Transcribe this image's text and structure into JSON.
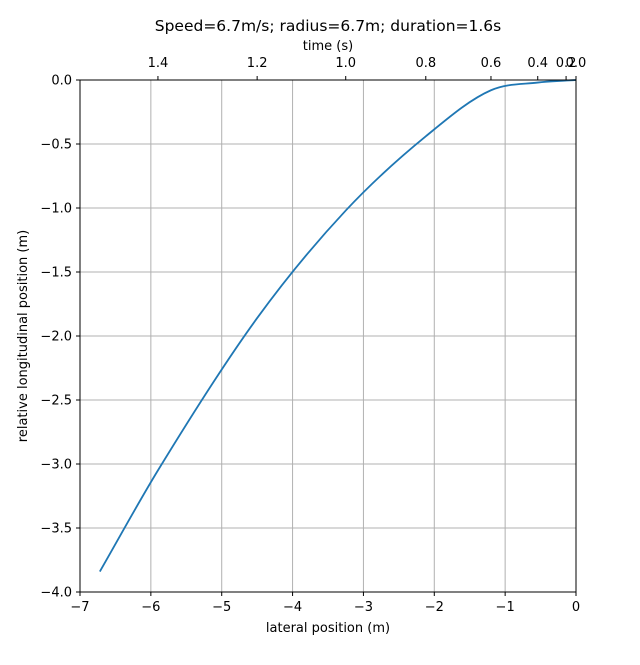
{
  "chart_data": {
    "type": "line",
    "title": "Speed=6.7m/s; radius=6.7m; duration=1.6s",
    "xlabel": "lateral position (m)",
    "ylabel": "relative longitudinal position (m)",
    "top_xlabel": "time (s)",
    "xlim": [
      -7,
      0
    ],
    "ylim": [
      -4,
      0
    ],
    "grid": true,
    "x_ticks": [
      -7,
      -6,
      -5,
      -4,
      -3,
      -2,
      -1,
      0
    ],
    "x_tick_labels": [
      "−7",
      "−6",
      "−5",
      "−4",
      "−3",
      "−2",
      "−1",
      "0"
    ],
    "y_ticks": [
      0,
      -0.5,
      -1,
      -1.5,
      -2,
      -2.5,
      -3,
      -3.5,
      -4
    ],
    "y_tick_labels": [
      "0.0",
      "−0.5",
      "−1.0",
      "−1.5",
      "−2.0",
      "−2.5",
      "−3.0",
      "−3.5",
      "−4.0"
    ],
    "top_ticks": [
      {
        "x": -5.9,
        "label": "1.4"
      },
      {
        "x": -4.5,
        "label": "1.2"
      },
      {
        "x": -3.25,
        "label": "1.0"
      },
      {
        "x": -2.12,
        "label": "0.8"
      },
      {
        "x": -1.2,
        "label": "0.6"
      },
      {
        "x": -0.54,
        "label": "0.4"
      },
      {
        "x": -0.14,
        "label": "0.2"
      },
      {
        "x": 0,
        "label": "0.0"
      }
    ],
    "line_color": "#1f77b4",
    "series": [
      {
        "x": [
          0,
          -0.13,
          -0.54,
          -1.2,
          -2.12,
          -3.25,
          -4.5,
          -5.9,
          -6.72
        ],
        "y": [
          0,
          -0.004,
          -0.02,
          -0.08,
          -0.44,
          -1.02,
          -1.86,
          -3.05,
          -3.84
        ]
      }
    ]
  }
}
